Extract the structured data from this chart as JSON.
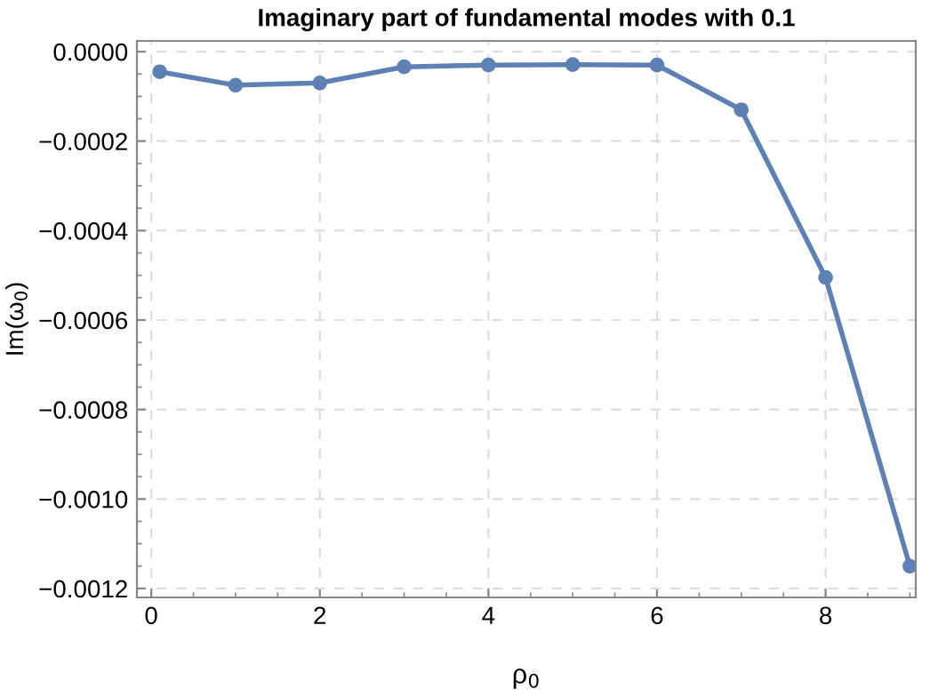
{
  "chart_data": {
    "type": "line",
    "title": "Imaginary part of fundamental modes with 0.1",
    "xlabel": "ρ$_{0}$",
    "ylabel": "Im(ω$_{0}$)",
    "x": [
      0.1,
      1,
      2,
      3,
      4,
      5,
      6,
      7,
      8,
      9
    ],
    "series": [
      {
        "color": "#5e81b5",
        "values": [
          -4.5e-05,
          -7.5e-05,
          -7e-05,
          -3.4e-05,
          -3e-05,
          -2.9e-05,
          -3e-05,
          -0.00013,
          -0.000505,
          -0.00115
        ]
      }
    ],
    "xlim": [
      -0.17,
      9.07
    ],
    "ylim": [
      -0.00122,
      2.4e-05
    ],
    "xticks": [
      0,
      2,
      4,
      6,
      8
    ],
    "yticks": [
      {
        "value": 0,
        "label": "0.0000"
      },
      {
        "value": -0.0002,
        "label": "−0.0002"
      },
      {
        "value": -0.0004,
        "label": "−0.0004"
      },
      {
        "value": -0.0006,
        "label": "−0.0006"
      },
      {
        "value": -0.0008,
        "label": "−0.0008"
      },
      {
        "value": -0.001,
        "label": "−0.0010"
      },
      {
        "value": -0.0012,
        "label": "−0.0012"
      }
    ],
    "grid": true,
    "marker": "circle",
    "line_style": "solid"
  }
}
